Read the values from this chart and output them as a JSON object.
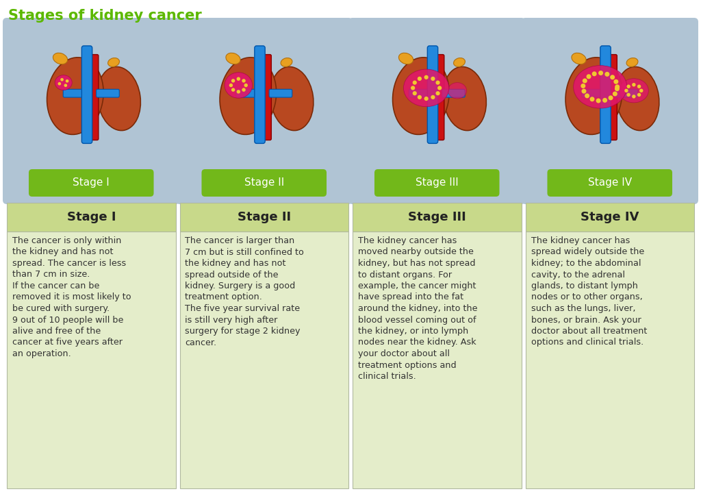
{
  "title": "Stages of kidney cancer",
  "title_color": "#5cb800",
  "title_fontsize": 15,
  "background_color": "#ffffff",
  "stages": [
    "Stage I",
    "Stage II",
    "Stage III",
    "Stage IV"
  ],
  "image_box_color": "#b0c4d4",
  "label_box_color": "#72b81a",
  "label_text_color": "#ffffff",
  "label_fontsize": 11,
  "header_bg_color": "#c8d98a",
  "header_text_color": "#222222",
  "header_fontsize": 13,
  "body_bg_color": "#e4edca",
  "body_text_color": "#333333",
  "body_fontsize": 9.2,
  "border_color": "#b0b8a0",
  "descriptions": [
    "The cancer is only within\nthe kidney and has not\nspread. The cancer is less\nthan 7 cm in size.\nIf the cancer can be\nremoved it is most likely to\nbe cured with surgery.\n9 out of 10 people will be\nalive and free of the\ncancer at five years after\nan operation.",
    "The cancer is larger than\n7 cm but is still confined to\nthe kidney and has not\nspread outside of the\nkidney. Surgery is a good\ntreatment option.\nThe five year survival rate\nis still very high after\nsurgery for stage 2 kidney\ncancer.",
    "The kidney cancer has\nmoved nearby outside the\nkidney, but has not spread\nto distant organs. For\nexample, the cancer might\nhave spread into the fat\naround the kidney, into the\nblood vessel coming out of\nthe kidney, or into lymph\nnodes near the kidney. Ask\nyour doctor about all\ntreatment options and\nclinical trials.",
    "The kidney cancer has\nspread widely outside the\nkidney; to the abdominal\ncavity, to the adrenal\nglands, to distant lymph\nnodes or to other organs,\nsuch as the lungs, liver,\nbones, or brain. Ask your\ndoctor about all treatment\noptions and clinical trials."
  ]
}
